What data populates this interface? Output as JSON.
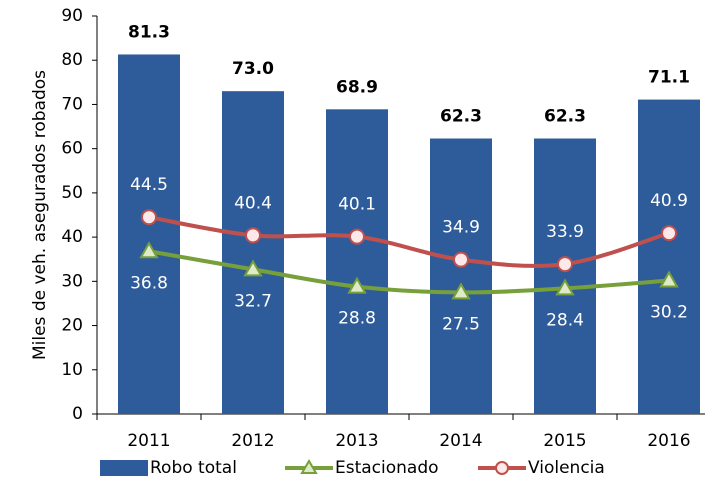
{
  "chart_data": {
    "type": "bar",
    "y_label": "Miles de veh. asegurados robados",
    "categories": [
      "2011",
      "2012",
      "2013",
      "2014",
      "2015",
      "2016"
    ],
    "ylim": [
      0,
      90
    ],
    "yticks": [
      0,
      10,
      20,
      30,
      40,
      50,
      60,
      70,
      80,
      90
    ],
    "series": [
      {
        "name": "Robo total",
        "type": "bar",
        "color": "#2e5c9a",
        "values": [
          81.3,
          73.0,
          68.9,
          62.3,
          62.3,
          71.1
        ],
        "value_labels": [
          "81.3",
          "73.0",
          "68.9",
          "62.3",
          "62.3",
          "71.1"
        ]
      },
      {
        "name": "Estacionado",
        "type": "line",
        "marker": "triangle",
        "label_side": "below",
        "color": "#77a03a",
        "values": [
          36.8,
          32.7,
          28.8,
          27.5,
          28.4,
          30.2
        ]
      },
      {
        "name": "Violencia",
        "type": "line",
        "marker": "circle",
        "label_side": "above",
        "color": "#c0504d",
        "values": [
          44.5,
          40.4,
          40.1,
          34.9,
          33.9,
          40.9
        ]
      }
    ]
  }
}
